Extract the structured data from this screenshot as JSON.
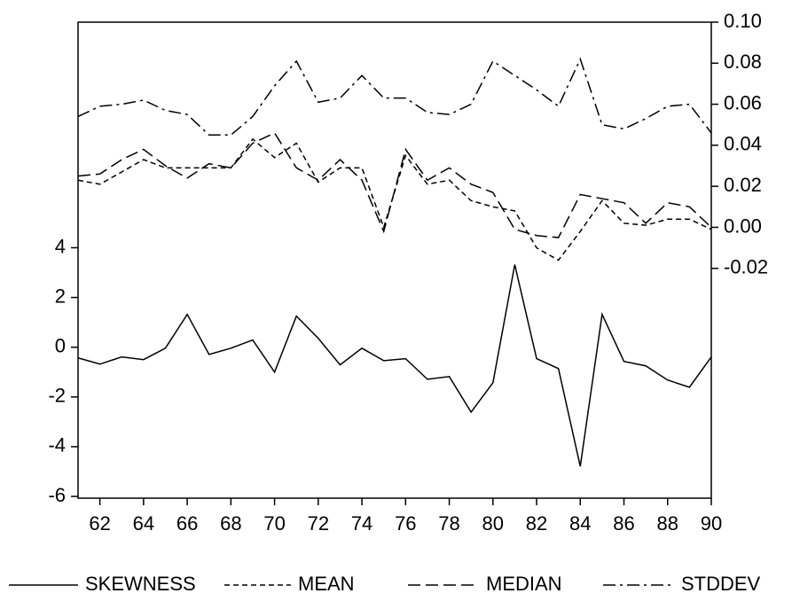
{
  "chart_data": {
    "type": "line",
    "x": [
      61,
      62,
      63,
      64,
      65,
      66,
      67,
      68,
      69,
      70,
      71,
      72,
      73,
      74,
      75,
      76,
      77,
      78,
      79,
      80,
      81,
      82,
      83,
      84,
      85,
      86,
      87,
      88,
      89,
      90
    ],
    "xlim": [
      61,
      90
    ],
    "xticks": [
      62,
      64,
      66,
      68,
      70,
      72,
      74,
      76,
      78,
      80,
      82,
      84,
      86,
      88,
      90
    ],
    "ylim": [
      -6.07,
      13.07
    ],
    "yticks": [
      -6,
      -4,
      -2,
      0,
      2,
      4
    ],
    "y2lim": [
      -0.132,
      0.1
    ],
    "y2ticks": [
      {
        "value": 0.1,
        "label": "0.10"
      },
      0.08,
      0.06,
      0.04,
      0.02,
      {
        "value": 0,
        "label": "0.00"
      },
      -0.02
    ],
    "legend": "bottom",
    "series": [
      {
        "name": "SKEWNESS",
        "color": "#000000",
        "line_style": "solid",
        "values": [
          -0.43,
          -0.68,
          -0.39,
          -0.5,
          -0.04,
          1.32,
          -0.29,
          -0.04,
          0.29,
          -1.0,
          1.25,
          0.36,
          -0.71,
          -0.04,
          -0.54,
          -0.46,
          -1.29,
          -1.18,
          -2.61,
          -1.43,
          3.32,
          -0.46,
          -0.86,
          -4.79,
          1.32,
          -0.57,
          -0.75,
          -1.32,
          -1.61,
          -0.39
        ]
      },
      {
        "name": "MEAN",
        "color": "#000000",
        "line_style": "short-dash",
        "axis": "y2",
        "values": [
          0.023,
          0.021,
          0.027,
          0.033,
          0.029,
          0.029,
          0.029,
          0.029,
          0.043,
          0.034,
          0.041,
          0.022,
          0.029,
          0.029,
          0.0,
          0.035,
          0.021,
          0.023,
          0.013,
          0.01,
          0.008,
          -0.01,
          -0.016,
          -0.002,
          0.013,
          0.002,
          0.001,
          0.004,
          0.004,
          -0.001
        ]
      },
      {
        "name": "MEDIAN",
        "color": "#000000",
        "line_style": "long-dash",
        "axis": "y2",
        "values": [
          0.025,
          0.026,
          0.033,
          0.038,
          0.03,
          0.024,
          0.031,
          0.029,
          0.041,
          0.046,
          0.029,
          0.023,
          0.033,
          0.023,
          -0.002,
          0.038,
          0.023,
          0.029,
          0.021,
          0.017,
          -0.001,
          -0.004,
          -0.005,
          0.016,
          0.014,
          0.012,
          0.002,
          0.012,
          0.01,
          0.0
        ]
      },
      {
        "name": "STDDEV",
        "color": "#000000",
        "line_style": "dash-dot",
        "axis": "y2",
        "values": [
          0.054,
          0.059,
          0.06,
          0.062,
          0.057,
          0.055,
          0.045,
          0.045,
          0.054,
          0.069,
          0.081,
          0.061,
          0.063,
          0.074,
          0.063,
          0.063,
          0.056,
          0.055,
          0.06,
          0.081,
          0.074,
          0.067,
          0.059,
          0.082,
          0.05,
          0.048,
          0.053,
          0.059,
          0.06,
          0.046
        ]
      }
    ]
  }
}
